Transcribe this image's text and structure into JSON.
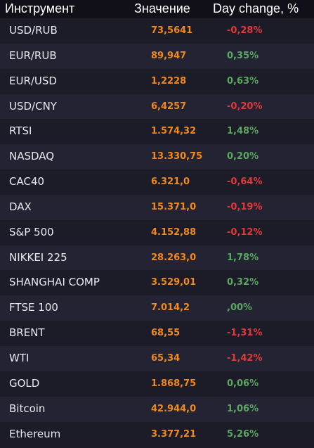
{
  "header": {
    "instrument": "Инструмент",
    "value": "Значение",
    "day_change": "Day change, %"
  },
  "colors": {
    "background": "#1b1a26",
    "header_background": "#111018",
    "value": "#f08a1c",
    "positive": "#5aa760",
    "negative": "#e0393a"
  },
  "rows": [
    {
      "name": "USD/RUB",
      "value": "73,5641",
      "change": "-0,28%",
      "direction": "neg"
    },
    {
      "name": "EUR/RUB",
      "value": "89,947",
      "change": "0,35%",
      "direction": "pos"
    },
    {
      "name": "EUR/USD",
      "value": "1,2228",
      "change": "0,63%",
      "direction": "pos"
    },
    {
      "name": "USD/CNY",
      "value": "6,4257",
      "change": "-0,20%",
      "direction": "neg"
    },
    {
      "name": "RTSI",
      "value": "1.574,32",
      "change": "1,48%",
      "direction": "pos"
    },
    {
      "name": "NASDAQ",
      "value": "13.330,75",
      "change": "0,20%",
      "direction": "pos"
    },
    {
      "name": "CAC40",
      "value": "6.321,0",
      "change": "-0,64%",
      "direction": "neg"
    },
    {
      "name": "DAX",
      "value": "15.371,0",
      "change": "-0,19%",
      "direction": "neg"
    },
    {
      "name": "S&P 500",
      "value": "4.152,88",
      "change": "-0,12%",
      "direction": "neg"
    },
    {
      "name": "NIKKEI 225",
      "value": "28.263,0",
      "change": "1,78%",
      "direction": "pos"
    },
    {
      "name": "SHANGHAI COMP",
      "value": "3.529,01",
      "change": "0,32%",
      "direction": "pos"
    },
    {
      "name": "FTSE 100",
      "value": "7.014,2",
      "change": ",00%",
      "direction": "pos"
    },
    {
      "name": "BRENT",
      "value": "68,55",
      "change": "-1,31%",
      "direction": "neg"
    },
    {
      "name": "WTI",
      "value": "65,34",
      "change": "-1,42%",
      "direction": "neg"
    },
    {
      "name": "GOLD",
      "value": "1.868,75",
      "change": "0,06%",
      "direction": "pos"
    },
    {
      "name": "Bitcoin",
      "value": "42.944,0",
      "change": "1,06%",
      "direction": "pos"
    },
    {
      "name": "Ethereum",
      "value": "3.377,21",
      "change": "5,26%",
      "direction": "pos"
    }
  ]
}
